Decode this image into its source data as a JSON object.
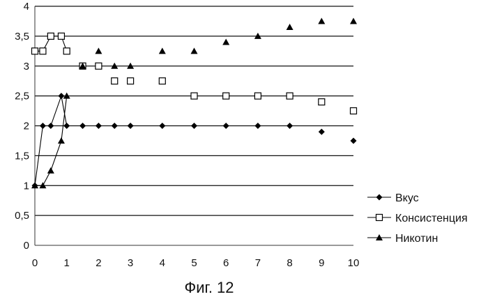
{
  "chart_data": {
    "type": "scatter",
    "caption": "Фиг. 12",
    "xlim": [
      0,
      10
    ],
    "ylim": [
      0,
      4
    ],
    "x_ticks": [
      "0",
      "1",
      "2",
      "3",
      "4",
      "5",
      "6",
      "7",
      "8",
      "9",
      "10"
    ],
    "y_ticks": [
      "0",
      "0,5",
      "1",
      "1,5",
      "2",
      "2,5",
      "3",
      "3,5",
      "4"
    ],
    "grid": "horizontal",
    "legend_position": "right",
    "series": [
      {
        "name": "Вкус",
        "marker": "diamond",
        "color": "#000000",
        "x": [
          0,
          0.25,
          0.5,
          0.83,
          1,
          1.5,
          2,
          2.5,
          3,
          4,
          5,
          6,
          7,
          8,
          9,
          10
        ],
        "y": [
          1,
          2,
          2,
          2.5,
          2,
          2,
          2,
          2,
          2,
          2,
          2,
          2,
          2,
          2,
          1.9,
          1.75
        ],
        "connected_until_index": 4
      },
      {
        "name": "Консистенция",
        "marker": "square-open",
        "color": "#000000",
        "x": [
          0,
          0.25,
          0.5,
          0.83,
          1,
          1.5,
          2,
          2.5,
          3,
          4,
          5,
          6,
          7,
          8,
          9,
          10
        ],
        "y": [
          3.25,
          3.25,
          3.5,
          3.5,
          3.25,
          3,
          3,
          2.75,
          2.75,
          2.75,
          2.5,
          2.5,
          2.5,
          2.5,
          2.4,
          2.25
        ],
        "connected_until_index": 4
      },
      {
        "name": "Никотин",
        "marker": "triangle",
        "color": "#000000",
        "x": [
          0,
          0.25,
          0.5,
          0.83,
          1,
          1.5,
          2,
          2.5,
          3,
          4,
          5,
          6,
          7,
          8,
          9,
          10
        ],
        "y": [
          1,
          1,
          1.25,
          1.75,
          2.5,
          3,
          3.25,
          3,
          3,
          3.25,
          3.25,
          3.4,
          3.5,
          3.65,
          3.75,
          3.75
        ],
        "connected_until_index": 4
      }
    ]
  }
}
